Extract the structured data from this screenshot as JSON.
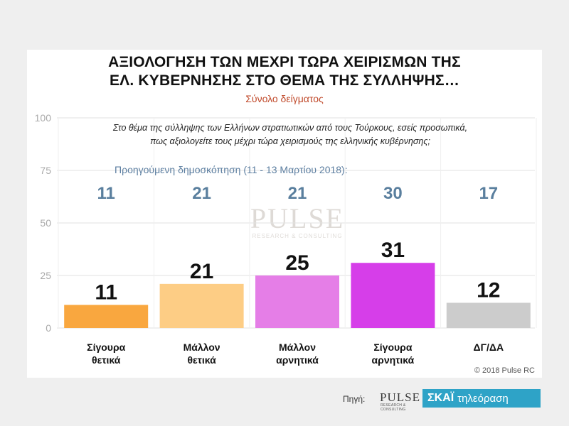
{
  "header": {
    "title_line1": "ΑΞΙΟΛΟΓΗΣΗ ΤΩΝ ΜΕΧΡΙ ΤΩΡΑ ΧΕΙΡΙΣΜΩΝ ΤΗΣ",
    "title_line2": "ΕΛ. ΚΥΒΕΡΝΗΣΗΣ ΣΤΟ ΘΕΜΑ ΤΗΣ ΣΥΛΛΗΨΗΣ…",
    "subtitle": "Σύνολο δείγματος"
  },
  "question": {
    "line1": "Στο θέμα της σύλληψης των Ελλήνων στρατιωτικών από τους Τούρκους, εσείς προσωπικά,",
    "line2": "πως αξιολογείτε τους μέχρι τώρα χειρισμούς της ελληνικής κυβέρνησης;"
  },
  "previous_caption": "Προηγούμενη δημοσκόπηση (11 - 13 Μαρτίου 2018):",
  "copyright": "© 2018 Pulse RC",
  "watermark": {
    "word": "PULSE",
    "sub": "RESEARCH & CONSULTING"
  },
  "footer": {
    "source_label": "Πηγή:",
    "pulse_logo_text": "PULSE",
    "pulse_logo_sub": "RESEARCH & CONSULTING",
    "channel_brand": "ΣΚΑΪ",
    "channel_word": "τηλεόραση"
  },
  "chart_data": {
    "type": "bar",
    "title": "ΑΞΙΟΛΟΓΗΣΗ ΤΩΝ ΜΕΧΡΙ ΤΩΡΑ ΧΕΙΡΙΣΜΩΝ ΤΗΣ ΕΛ. ΚΥΒΕΡΝΗΣΗΣ ΣΤΟ ΘΕΜΑ ΤΗΣ ΣΥΛΛΗΨΗΣ…",
    "subtitle": "Σύνολο δείγματος",
    "categories": [
      [
        "Σίγουρα",
        "θετικά"
      ],
      [
        "Μάλλον",
        "θετικά"
      ],
      [
        "Μάλλον",
        "αρνητικά"
      ],
      [
        "Σίγουρα",
        "αρνητικά"
      ],
      [
        "ΔΓ/ΔΑ"
      ]
    ],
    "values": [
      11,
      21,
      25,
      31,
      12
    ],
    "previous_values": [
      11,
      21,
      21,
      30,
      17
    ],
    "colors": [
      "#f9a73f",
      "#fdcd85",
      "#e57ee7",
      "#d63ee9",
      "#cccccc"
    ],
    "yticks": [
      0,
      25,
      50,
      75,
      100
    ],
    "ylim": [
      0,
      100
    ],
    "xlabel": "",
    "ylabel": "",
    "grid": true
  }
}
